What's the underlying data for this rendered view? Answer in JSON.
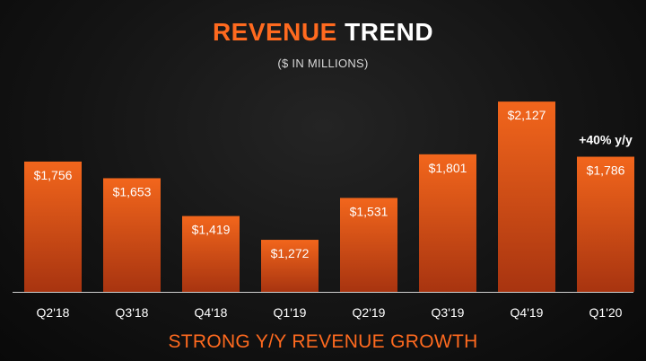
{
  "header": {
    "title_accent": "REVENUE",
    "title_rest": "TREND",
    "subtitle": "($ IN MILLIONS)"
  },
  "footer": {
    "tagline": "STRONG Y/Y REVENUE GROWTH"
  },
  "colors": {
    "accent": "#ff6a1f",
    "bar_top": "#f2661c",
    "bar_bottom": "#a83410"
  },
  "chart_data": {
    "type": "bar",
    "title": "REVENUE TREND",
    "subtitle": "($ IN MILLIONS)",
    "categories": [
      "Q2'18",
      "Q3'18",
      "Q4'18",
      "Q1'19",
      "Q2'19",
      "Q3'19",
      "Q4'19",
      "Q1'20"
    ],
    "values": [
      1756,
      1653,
      1419,
      1272,
      1531,
      1801,
      2127,
      1786
    ],
    "value_labels": [
      "$1,756",
      "$1,653",
      "$1,419",
      "$1,272",
      "$1,531",
      "$1,801",
      "$2,127",
      "$1,786"
    ],
    "annotation": {
      "category": "Q1'20",
      "text": "+40% y/y"
    },
    "ylim": [
      950,
      2150
    ],
    "xlabel": "",
    "ylabel": "",
    "grid": false,
    "legend": "none"
  }
}
